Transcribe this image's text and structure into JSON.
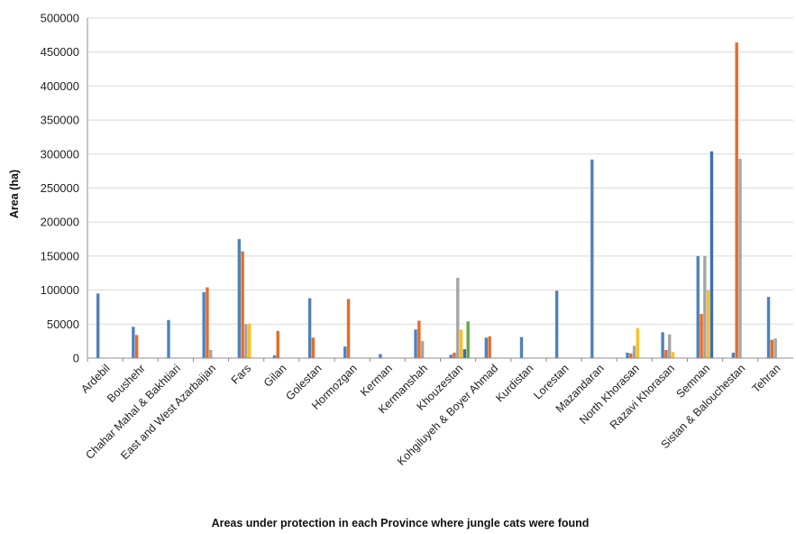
{
  "chart_data": {
    "type": "bar",
    "xlabel": "Areas under protection in each Province where jungle cats were found",
    "ylabel": "Area (ha)",
    "ylim": [
      0,
      500000
    ],
    "yticks": [
      0,
      50000,
      100000,
      150000,
      200000,
      250000,
      300000,
      350000,
      400000,
      450000,
      500000
    ],
    "ytick_labels": [
      "0",
      "50000",
      "100000",
      "150000",
      "200000",
      "250000",
      "300000",
      "350000",
      "400000",
      "450000",
      "500000"
    ],
    "grid": "horizontal",
    "categories": [
      "Ardebil",
      "Boushehr",
      "Chahar Mahal & Bakhtiari",
      "East and West Azarbaijan",
      "Fars",
      "Gilan",
      "Golestan",
      "Hormozgan",
      "Kerman",
      "Kermanshah",
      "Khouzestan",
      "Kohgiluyeh & Boyer Ahmad",
      "Kurdistan",
      "Lorestan",
      "Mazandaran",
      "North Khorasan",
      "Razavi Khorasan",
      "Semnan",
      "Sistan & Balouchestan",
      "Tehran"
    ],
    "series": [
      {
        "color": "#4f81bd",
        "values": [
          95000,
          46000,
          56000,
          97000,
          175000,
          4000,
          88000,
          17000,
          6000,
          42000,
          5000,
          30000,
          31000,
          99000,
          292000,
          8000,
          38000,
          150000,
          8000,
          90000
        ]
      },
      {
        "color": "#e46c28",
        "values": [
          0,
          34000,
          0,
          104000,
          157000,
          40000,
          30000,
          87000,
          0,
          55000,
          8000,
          32000,
          0,
          0,
          0,
          7000,
          12000,
          65000,
          464000,
          27000
        ]
      },
      {
        "color": "#a5a5a5",
        "values": [
          0,
          0,
          0,
          12000,
          50000,
          0,
          0,
          0,
          0,
          25000,
          118000,
          0,
          0,
          0,
          0,
          18000,
          35000,
          150000,
          293000,
          29000
        ]
      },
      {
        "color": "#fbbf26",
        "values": [
          0,
          0,
          0,
          0,
          51000,
          0,
          0,
          0,
          0,
          0,
          42000,
          0,
          0,
          0,
          0,
          44000,
          9000,
          100000,
          0,
          0
        ]
      },
      {
        "color": "#3a6fb4",
        "values": [
          0,
          0,
          0,
          0,
          0,
          0,
          0,
          0,
          0,
          0,
          13000,
          0,
          0,
          0,
          0,
          0,
          0,
          304000,
          0,
          0
        ]
      },
      {
        "color": "#62a846",
        "values": [
          0,
          0,
          0,
          0,
          0,
          0,
          0,
          0,
          0,
          0,
          54000,
          0,
          0,
          0,
          0,
          0,
          0,
          0,
          0,
          0
        ]
      }
    ]
  },
  "colors": {
    "gridline": "#d9d9d9",
    "axis": "#8c8c8c",
    "text": "#222222"
  }
}
